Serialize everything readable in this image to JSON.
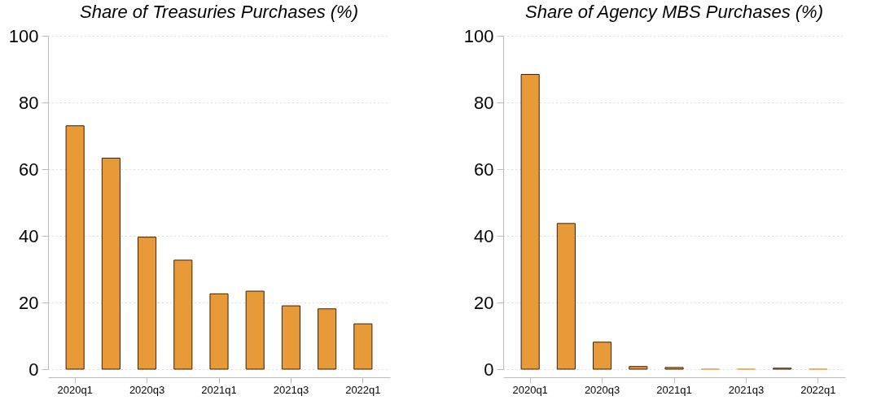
{
  "chart_data": [
    {
      "type": "bar",
      "title": "Share of Treasuries Purchases (%)",
      "categories": [
        "2020q1",
        null,
        "2020q3",
        null,
        "2021q1",
        null,
        "2021q3",
        null,
        "2022q1"
      ],
      "values": [
        73.0,
        63.3,
        39.6,
        32.7,
        22.6,
        23.4,
        19.0,
        18.1,
        13.6
      ],
      "color": "#e99a38",
      "ylim": [
        0,
        100
      ],
      "yticks": [
        0,
        20,
        40,
        60,
        80,
        100
      ],
      "grid": "y"
    },
    {
      "type": "bar",
      "title": "Share of Agency MBS Purchases (%)",
      "categories": [
        "2020q1",
        null,
        "2020q3",
        null,
        "2021q1",
        null,
        "2021q3",
        null,
        "2022q1"
      ],
      "values": [
        88.4,
        43.7,
        8.1,
        0.8,
        0.5,
        0,
        0,
        0.3,
        0
      ],
      "color": "#e99a38",
      "ylim": [
        0,
        100
      ],
      "yticks": [
        0,
        20,
        40,
        60,
        80,
        100
      ],
      "grid": "y"
    }
  ]
}
